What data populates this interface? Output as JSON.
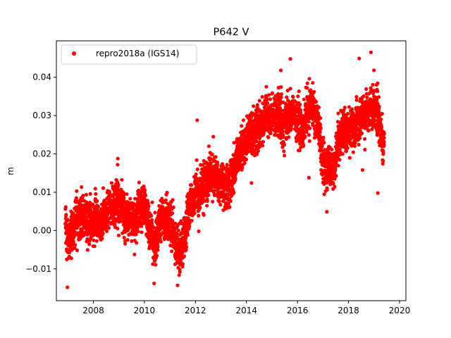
{
  "chart_data": {
    "type": "scatter",
    "title": "P642 V",
    "xlabel": "",
    "ylabel": "m",
    "xlim": [
      2006.55,
      2020.25
    ],
    "ylim": [
      -0.0183,
      0.0495
    ],
    "x_ticks": [
      2008,
      2010,
      2012,
      2014,
      2016,
      2018,
      2020
    ],
    "x_tick_labels": [
      "2008",
      "2010",
      "2012",
      "2014",
      "2016",
      "2018",
      "2020"
    ],
    "y_ticks": [
      -0.01,
      0.0,
      0.01,
      0.02,
      0.03,
      0.04
    ],
    "y_tick_labels": [
      "−0.01",
      "0.00",
      "0.01",
      "0.02",
      "0.03",
      "0.04"
    ],
    "grid": false,
    "legend_position": "top-left",
    "series": [
      {
        "name": "repro2018a (IGS14)",
        "color": "#ff0000",
        "marker": "circle",
        "trend": {
          "x": [
            2006.9,
            2007.0,
            2007.1,
            2007.3,
            2007.5,
            2007.8,
            2008.0,
            2008.3,
            2008.6,
            2008.9,
            2009.2,
            2009.5,
            2009.8,
            2010.0,
            2010.2,
            2010.4,
            2010.6,
            2010.8,
            2011.0,
            2011.2,
            2011.4,
            2011.6,
            2011.8,
            2012.0,
            2012.3,
            2012.6,
            2012.9,
            2013.2,
            2013.5,
            2013.8,
            2014.0,
            2014.3,
            2014.6,
            2014.9,
            2015.2,
            2015.5,
            2015.8,
            2016.0,
            2016.2,
            2016.4,
            2016.6,
            2016.8,
            2017.0,
            2017.2,
            2017.4,
            2017.6,
            2017.8,
            2018.0,
            2018.3,
            2018.6,
            2018.9,
            2019.1,
            2019.3,
            2019.4
          ],
          "y": [
            0.001,
            -0.004,
            -0.002,
            0.002,
            0.004,
            0.002,
            0.003,
            0.002,
            0.006,
            0.007,
            0.005,
            0.003,
            0.004,
            0.006,
            0.001,
            -0.004,
            0.003,
            0.004,
            0.002,
            -0.002,
            -0.005,
            0.0,
            0.006,
            0.009,
            0.011,
            0.015,
            0.013,
            0.011,
            0.016,
            0.021,
            0.024,
            0.026,
            0.028,
            0.03,
            0.03,
            0.028,
            0.032,
            0.028,
            0.027,
            0.03,
            0.033,
            0.029,
            0.018,
            0.016,
            0.014,
            0.024,
            0.027,
            0.026,
            0.028,
            0.03,
            0.033,
            0.032,
            0.024,
            0.022
          ],
          "daily_scatter_sd": 0.0035,
          "approx_points": 4400
        },
        "outliers": [
          {
            "x": 2006.98,
            "y": -0.0148
          },
          {
            "x": 2011.3,
            "y": -0.0143
          },
          {
            "x": 2010.38,
            "y": -0.0138
          },
          {
            "x": 2012.07,
            "y": 0.0288
          },
          {
            "x": 2015.72,
            "y": 0.0448
          },
          {
            "x": 2018.42,
            "y": 0.0449
          },
          {
            "x": 2018.88,
            "y": 0.0465
          },
          {
            "x": 2017.15,
            "y": 0.0049
          },
          {
            "x": 2018.55,
            "y": 0.0158
          },
          {
            "x": 2019.15,
            "y": 0.0098
          },
          {
            "x": 2016.45,
            "y": 0.0138
          },
          {
            "x": 2008.95,
            "y": 0.0172
          },
          {
            "x": 2015.35,
            "y": 0.0418
          },
          {
            "x": 2012.7,
            "y": 0.0245
          }
        ]
      }
    ]
  }
}
